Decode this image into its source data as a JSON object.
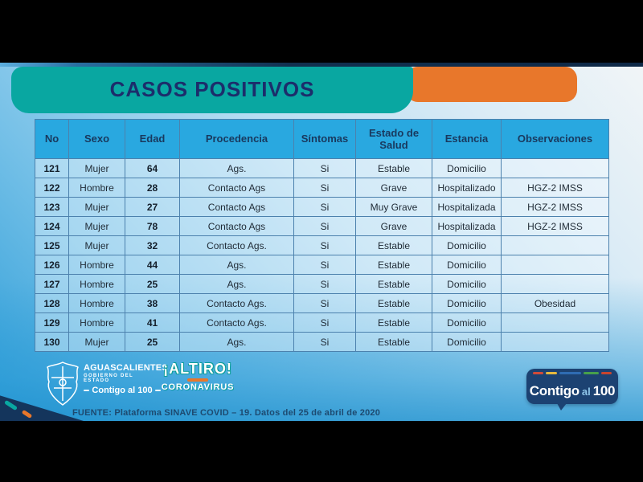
{
  "chart_data": {
    "type": "table",
    "title": "CASOS POSITIVOS",
    "columns": [
      "No",
      "Sexo",
      "Edad",
      "Procedencia",
      "Síntomas",
      "Estado de Salud",
      "Estancia",
      "Observaciones"
    ],
    "rows": [
      [
        "121",
        "Mujer",
        "64",
        "Ags.",
        "Si",
        "Estable",
        "Domicilio",
        ""
      ],
      [
        "122",
        "Hombre",
        "28",
        "Contacto Ags",
        "Si",
        "Grave",
        "Hospitalizado",
        "HGZ-2 IMSS"
      ],
      [
        "123",
        "Mujer",
        "27",
        "Contacto Ags",
        "Si",
        "Muy Grave",
        "Hospitalizada",
        "HGZ-2 IMSS"
      ],
      [
        "124",
        "Mujer",
        "78",
        "Contacto Ags",
        "Si",
        "Grave",
        "Hospitalizada",
        "HGZ-2 IMSS"
      ],
      [
        "125",
        "Mujer",
        "32",
        "Contacto Ags.",
        "Si",
        "Estable",
        "Domicilio",
        ""
      ],
      [
        "126",
        "Hombre",
        "44",
        "Ags.",
        "Si",
        "Estable",
        "Domicilio",
        ""
      ],
      [
        "127",
        "Hombre",
        "25",
        "Ags.",
        "Si",
        "Estable",
        "Domicilio",
        ""
      ],
      [
        "128",
        "Hombre",
        "38",
        "Contacto Ags.",
        "Si",
        "Estable",
        "Domicilio",
        "Obesidad"
      ],
      [
        "129",
        "Hombre",
        "41",
        "Contacto Ags.",
        "Si",
        "Estable",
        "Domicilio",
        ""
      ],
      [
        "130",
        "Mujer",
        "25",
        "Ags.",
        "Si",
        "Estable",
        "Domicilio",
        ""
      ]
    ]
  },
  "footer": {
    "government": {
      "name": "AGUASCALIENTES",
      "subtitle": "GOBIERNO DEL ESTADO",
      "slogan": "Contigo al 100"
    },
    "campaign": {
      "line1": "¡ALTIRO!",
      "line2": "CORONAVIRUS"
    },
    "badge": {
      "word1": "Contigo",
      "word2": "al",
      "word3": "100"
    },
    "source": "FUENTE: Plataforma SINAVE COVID – 19. Datos del 25 de abril de 2020"
  },
  "colors": {
    "teal": "#09a7a1",
    "orange": "#e8772b",
    "header_blue": "#29a8e0",
    "title_navy": "#1c2d6b",
    "badge_navy": "#1c4272",
    "badge_stripes": [
      "#d14b3a",
      "#e5b93e",
      "#2f6cb3",
      "#47a04b",
      "#c8452e"
    ]
  }
}
